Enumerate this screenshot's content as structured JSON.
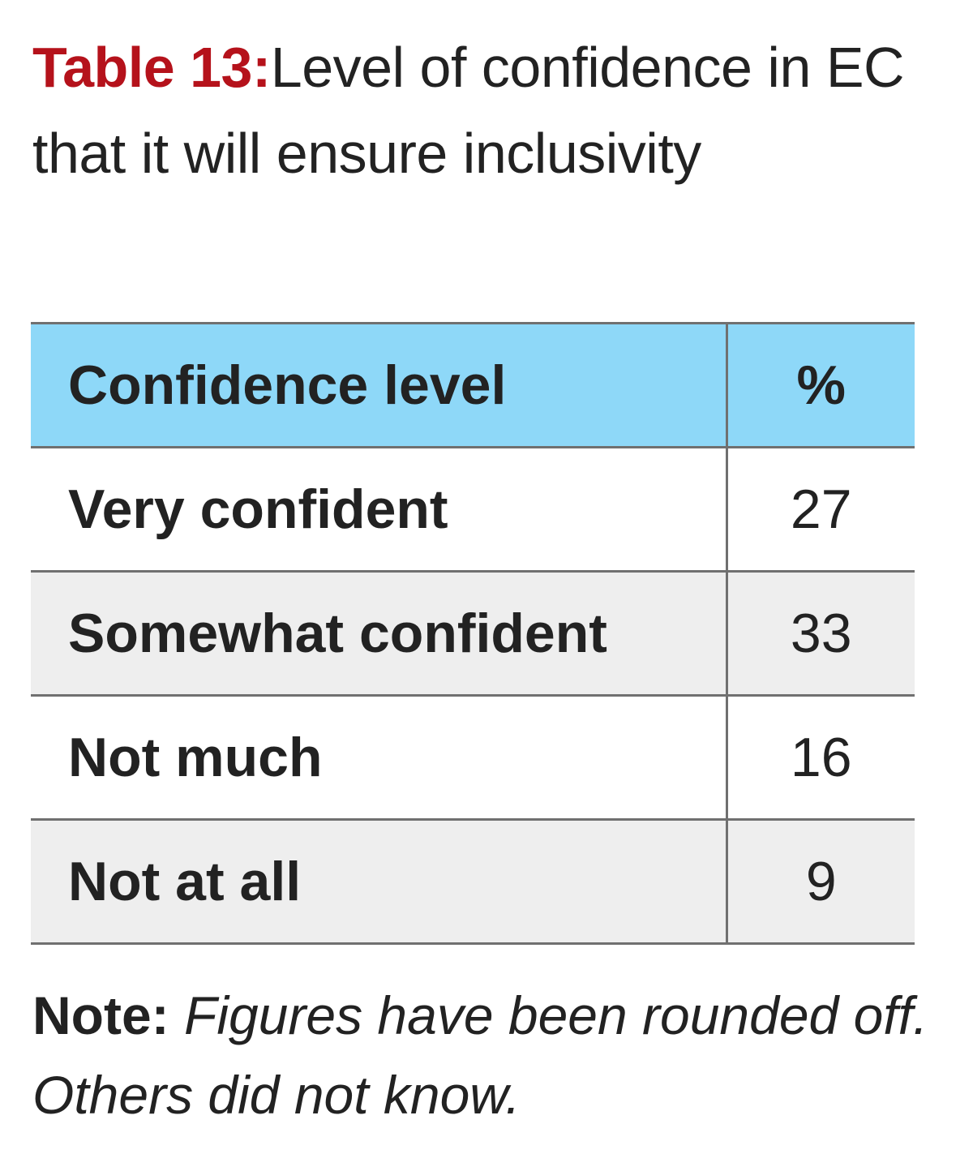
{
  "title": {
    "label": "Table 13:",
    "text": "Level of confidence in EC that it will ensure inclusivity"
  },
  "table": {
    "headers": [
      "Confidence level",
      "%"
    ],
    "rows": [
      {
        "label": "Very confident",
        "value": "27"
      },
      {
        "label": "Somewhat confident",
        "value": "33"
      },
      {
        "label": "Not much",
        "value": "16"
      },
      {
        "label": "Not at all",
        "value": "9"
      }
    ]
  },
  "note": {
    "label": "Note:",
    "text": "Figures have been rounded off. Others did not know."
  },
  "colors": {
    "title_label": "#b5121b",
    "header_bg": "#8ed8f8",
    "alt_row_bg": "#eeeeee",
    "border": "#707070"
  }
}
